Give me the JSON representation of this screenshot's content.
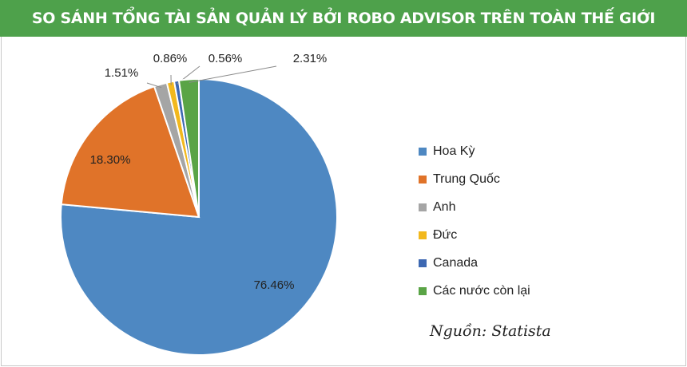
{
  "chart_data": {
    "type": "pie",
    "title": "SO SÁNH TỔNG TÀI SẢN QUẢN LÝ BỞI ROBO ADVISOR TRÊN TOÀN THẾ GIỚI",
    "categories": [
      "Hoa Kỳ",
      "Trung Quốc",
      "Anh",
      "Đức",
      "Canada",
      "Các nước còn lại"
    ],
    "values": [
      76.46,
      18.3,
      1.51,
      0.86,
      0.56,
      2.31
    ],
    "data_labels": [
      "76.46%",
      "18.30%",
      "1.51%",
      "0.86%",
      "0.56%",
      "2.31%"
    ],
    "colors": [
      "#4e88c2",
      "#e07329",
      "#a5a5a5",
      "#f2b81d",
      "#3d68b2",
      "#5aa446"
    ],
    "legend_position": "right",
    "start": "top",
    "direction": "clockwise"
  },
  "source": "Nguồn: Statista"
}
